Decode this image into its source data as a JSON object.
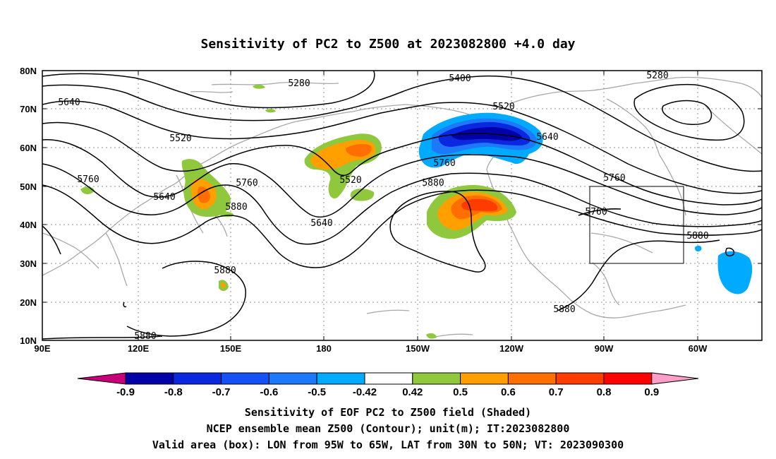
{
  "title": "Sensitivity of PC2 to Z500 at 2023082800 +4.0 day",
  "lat_labels": [
    "80N",
    "70N",
    "60N",
    "50N",
    "40N",
    "30N",
    "20N",
    "10N"
  ],
  "lon_labels": [
    "90E",
    "120E",
    "150E",
    "180",
    "150W",
    "120W",
    "90W",
    "60W"
  ],
  "contour_labels": [
    "5280",
    "5400",
    "5280",
    "5640",
    "5520",
    "5520",
    "5640",
    "5760",
    "5760",
    "5640",
    "5760",
    "5880",
    "5520",
    "5640",
    "5760",
    "5880",
    "5760",
    "5880",
    "5880",
    "5880",
    "5880",
    "5880"
  ],
  "colorbar": {
    "labels": [
      "-0.9",
      "-0.8",
      "-0.7",
      "-0.6",
      "-0.5",
      "-0.42",
      "0.42",
      "0.5",
      "0.6",
      "0.7",
      "0.8",
      "0.9"
    ],
    "colors": [
      "#0000a8",
      "#0a28e0",
      "#1450f5",
      "#1e78fa",
      "#00aaff",
      "#ffffff",
      "#8fc83c",
      "#ff9f00",
      "#ff6e00",
      "#ff3c00",
      "#ff0000"
    ],
    "low_end_color": "#c8007a",
    "high_end_color": "#ff9ec8"
  },
  "caption": [
    "Sensitivity of EOF PC2 to Z500 field (Shaded)",
    "NCEP ensemble mean Z500 (Contour); unit(m); IT:2023082800",
    "Valid area (box): LON from 95W to 65W, LAT from 30N to 50N; VT: 2023090300"
  ],
  "valid_box": {
    "lon": [
      "95W",
      "65W"
    ],
    "lat": [
      "30N",
      "50N"
    ]
  }
}
